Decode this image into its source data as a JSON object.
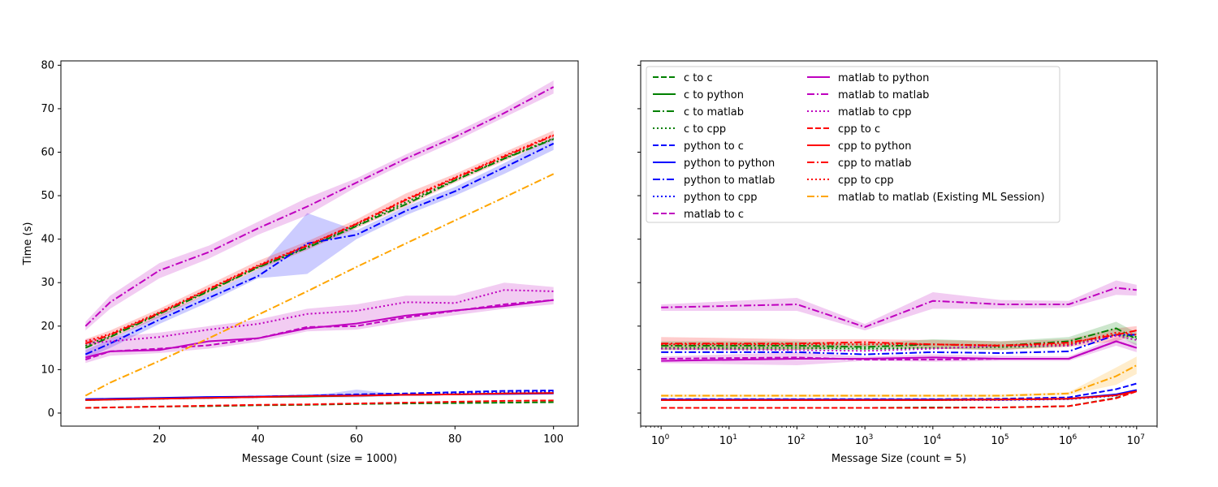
{
  "chart_data": [
    {
      "type": "line",
      "xlabel": "Message Count (size = 1000)",
      "ylabel": "Time (s)",
      "xlim": [
        0,
        105
      ],
      "ylim": [
        -3,
        81
      ],
      "xticks": [
        20,
        40,
        60,
        80,
        100
      ],
      "yticks": [
        0,
        10,
        20,
        30,
        40,
        50,
        60,
        70,
        80
      ],
      "x": [
        5,
        10,
        20,
        30,
        40,
        50,
        60,
        70,
        80,
        90,
        100
      ],
      "series": [
        {
          "name": "c to c",
          "color": "#008000",
          "style": "dashed",
          "values": [
            1.2,
            1.3,
            1.5,
            1.6,
            1.8,
            1.9,
            2.1,
            2.2,
            2.3,
            2.4,
            2.5
          ]
        },
        {
          "name": "c to python",
          "color": "#008000",
          "style": "solid",
          "values": [
            3.0,
            3.1,
            3.3,
            3.5,
            3.7,
            3.8,
            4.0,
            4.2,
            4.3,
            4.5,
            4.6
          ]
        },
        {
          "name": "c to matlab",
          "color": "#008000",
          "style": "dashdot",
          "values": [
            15.0,
            17.5,
            22.8,
            28.0,
            33.5,
            38.0,
            43.0,
            48.0,
            53.5,
            58.5,
            63.0
          ]
        },
        {
          "name": "c to cpp",
          "color": "#008000",
          "style": "dotted",
          "values": [
            15.5,
            17.8,
            23.0,
            28.2,
            33.6,
            38.2,
            43.2,
            48.5,
            53.6,
            58.6,
            63.2
          ]
        },
        {
          "name": "python to c",
          "color": "#0000ff",
          "style": "dashed",
          "values": [
            3.1,
            3.2,
            3.4,
            3.6,
            3.8,
            4.0,
            4.3,
            4.5,
            4.8,
            5.1,
            5.2
          ]
        },
        {
          "name": "python to python",
          "color": "#0000ff",
          "style": "solid",
          "values": [
            3.2,
            3.3,
            3.5,
            3.7,
            3.8,
            4.0,
            4.1,
            4.2,
            4.3,
            4.4,
            4.5
          ]
        },
        {
          "name": "python to matlab",
          "color": "#0000ff",
          "style": "dashdot",
          "values": [
            13.5,
            16.0,
            21.5,
            26.5,
            31.5,
            39.0,
            41.0,
            46.5,
            51.0,
            56.5,
            62.0
          ]
        },
        {
          "name": "python to cpp",
          "color": "#0000ff",
          "style": "dotted",
          "values": [
            3.0,
            3.1,
            3.3,
            3.5,
            3.7,
            3.9,
            4.1,
            4.3,
            4.5,
            4.7,
            4.9
          ]
        },
        {
          "name": "matlab to c",
          "color": "#bf00bf",
          "style": "dashed",
          "values": [
            12.3,
            14.2,
            14.8,
            15.6,
            17.2,
            19.8,
            20.0,
            22.0,
            23.5,
            25.0,
            26.0
          ]
        },
        {
          "name": "matlab to python",
          "color": "#bf00bf",
          "style": "solid",
          "values": [
            12.8,
            14.2,
            14.5,
            16.5,
            17.2,
            19.5,
            20.6,
            22.4,
            23.6,
            24.6,
            26.0
          ]
        },
        {
          "name": "matlab to matlab",
          "color": "#bf00bf",
          "style": "dashdot",
          "values": [
            20.0,
            25.5,
            32.8,
            37.0,
            42.5,
            47.5,
            53.0,
            58.5,
            63.5,
            69.0,
            75.0
          ]
        },
        {
          "name": "matlab to cpp",
          "color": "#bf00bf",
          "style": "dotted",
          "values": [
            16.0,
            16.5,
            17.5,
            19.2,
            20.5,
            22.8,
            23.5,
            25.5,
            25.3,
            28.3,
            28.0
          ]
        },
        {
          "name": "cpp to c",
          "color": "#ff0000",
          "style": "dashed",
          "values": [
            1.2,
            1.3,
            1.5,
            1.7,
            1.9,
            2.0,
            2.2,
            2.4,
            2.6,
            2.8,
            2.9
          ]
        },
        {
          "name": "cpp to python",
          "color": "#ff0000",
          "style": "solid",
          "values": [
            3.0,
            3.1,
            3.3,
            3.5,
            3.7,
            3.9,
            4.0,
            4.2,
            4.3,
            4.5,
            4.6
          ]
        },
        {
          "name": "cpp to matlab",
          "color": "#ff0000",
          "style": "dashdot",
          "values": [
            16.0,
            18.0,
            23.0,
            28.5,
            33.8,
            38.5,
            43.5,
            49.0,
            54.0,
            59.0,
            63.8
          ]
        },
        {
          "name": "cpp to cpp",
          "color": "#ff0000",
          "style": "dotted",
          "values": [
            16.5,
            18.2,
            23.2,
            28.6,
            34.0,
            38.6,
            43.6,
            49.2,
            54.2,
            59.2,
            64.0
          ]
        },
        {
          "name": "matlab to matlab (Existing ML Session)",
          "color": "#ffa500",
          "style": "dashdot",
          "values": [
            4.0,
            7.0,
            12.0,
            17.2,
            22.6,
            28.0,
            33.6,
            39.0,
            44.3,
            49.6,
            55.0
          ]
        }
      ],
      "bands": [
        {
          "color": "#0000ff",
          "x": [
            5,
            10,
            20,
            30,
            40,
            50,
            60,
            70,
            80,
            90,
            100
          ],
          "upper": [
            14.5,
            17.0,
            22.5,
            27.5,
            33.0,
            46.0,
            42.0,
            47.5,
            52.0,
            57.5,
            63.5
          ],
          "lower": [
            12.5,
            15.0,
            20.5,
            25.5,
            31.0,
            32.0,
            40.0,
            45.5,
            50.0,
            55.0,
            60.5
          ]
        },
        {
          "color": "#bf00bf",
          "x": [
            5,
            10,
            20,
            30,
            40,
            50,
            60,
            70,
            80,
            90,
            100
          ],
          "upper": [
            21.0,
            27.0,
            34.5,
            38.5,
            44.0,
            49.5,
            54.0,
            59.5,
            64.5,
            70.0,
            76.5
          ],
          "lower": [
            19.0,
            24.0,
            31.0,
            35.5,
            41.0,
            45.5,
            52.0,
            57.5,
            62.5,
            68.0,
            73.5
          ]
        },
        {
          "color": "#bf00bf",
          "x": [
            5,
            10,
            20,
            30,
            40,
            50,
            60,
            70,
            80,
            90,
            100
          ],
          "upper": [
            17.0,
            17.5,
            18.5,
            20.0,
            21.5,
            24.0,
            25.0,
            27.0,
            27.0,
            30.0,
            29.0
          ],
          "lower": [
            11.5,
            13.2,
            13.8,
            14.8,
            16.4,
            18.8,
            19.2,
            21.0,
            22.5,
            24.0,
            25.0
          ]
        },
        {
          "color": "#ff0000",
          "x": [
            5,
            10,
            20,
            30,
            40,
            50,
            60,
            70,
            80,
            90,
            100
          ],
          "upper": [
            17.0,
            19.0,
            24.0,
            29.5,
            35.0,
            39.5,
            44.5,
            50.5,
            55.0,
            60.0,
            65.0
          ],
          "lower": [
            15.0,
            17.0,
            22.0,
            27.5,
            33.0,
            37.5,
            42.5,
            47.5,
            53.0,
            58.0,
            62.8
          ]
        },
        {
          "color": "#0000ff",
          "x": [
            50,
            55,
            60,
            65,
            70
          ],
          "upper": [
            4.2,
            4.6,
            5.4,
            4.8,
            4.4
          ],
          "lower": [
            3.8,
            3.6,
            3.6,
            3.8,
            4.0
          ]
        }
      ]
    },
    {
      "type": "line",
      "xlabel": "Message Size (count = 5)",
      "xscale": "log",
      "xlim": [
        0.5,
        20000000
      ],
      "ylim": [
        -3,
        81
      ],
      "xticks": [
        1,
        10,
        100,
        1000,
        10000,
        100000,
        1000000,
        10000000
      ],
      "xtick_labels": [
        {
          "base": "10",
          "exp": "0"
        },
        {
          "base": "10",
          "exp": "1"
        },
        {
          "base": "10",
          "exp": "2"
        },
        {
          "base": "10",
          "exp": "3"
        },
        {
          "base": "10",
          "exp": "4"
        },
        {
          "base": "10",
          "exp": "5"
        },
        {
          "base": "10",
          "exp": "6"
        },
        {
          "base": "10",
          "exp": "7"
        }
      ],
      "legend_position": "top-left",
      "x": [
        1,
        100,
        1000,
        10000,
        100000,
        1000000,
        5000000,
        10000000
      ],
      "series": [
        {
          "name": "c to c",
          "color": "#008000",
          "style": "dashed",
          "values": [
            1.2,
            1.2,
            1.2,
            1.3,
            1.3,
            1.6,
            3.5,
            5.0
          ]
        },
        {
          "name": "c to python",
          "color": "#008000",
          "style": "solid",
          "values": [
            3.0,
            3.0,
            3.0,
            3.0,
            3.1,
            3.3,
            4.2,
            5.2
          ]
        },
        {
          "name": "c to matlab",
          "color": "#008000",
          "style": "dashdot",
          "values": [
            15.5,
            15.5,
            15.2,
            15.8,
            15.5,
            16.5,
            19.5,
            17.0
          ]
        },
        {
          "name": "c to cpp",
          "color": "#008000",
          "style": "dotted",
          "values": [
            15.0,
            15.0,
            14.8,
            15.0,
            15.2,
            15.5,
            18.0,
            17.5
          ]
        },
        {
          "name": "python to c",
          "color": "#0000ff",
          "style": "dashed",
          "values": [
            3.2,
            3.2,
            3.2,
            3.2,
            3.3,
            3.6,
            5.5,
            6.8
          ]
        },
        {
          "name": "python to python",
          "color": "#0000ff",
          "style": "solid",
          "values": [
            3.1,
            3.1,
            3.1,
            3.1,
            3.1,
            3.3,
            4.3,
            5.3
          ]
        },
        {
          "name": "python to matlab",
          "color": "#0000ff",
          "style": "dashdot",
          "values": [
            14.0,
            14.0,
            13.5,
            14.0,
            13.8,
            14.2,
            18.0,
            18.0
          ]
        },
        {
          "name": "python to cpp",
          "color": "#0000ff",
          "style": "dotted",
          "values": [
            3.0,
            3.0,
            3.0,
            3.0,
            3.0,
            3.2,
            4.0,
            5.1
          ]
        },
        {
          "name": "matlab to c",
          "color": "#bf00bf",
          "style": "dashed",
          "values": [
            12.5,
            12.8,
            12.3,
            12.3,
            12.5,
            12.5,
            16.5,
            15.0
          ]
        },
        {
          "name": "matlab to python",
          "color": "#bf00bf",
          "style": "solid",
          "values": [
            12.0,
            12.5,
            12.5,
            12.8,
            12.5,
            12.5,
            16.5,
            15.0
          ]
        },
        {
          "name": "matlab to matlab",
          "color": "#bf00bf",
          "style": "dashdot",
          "values": [
            24.3,
            25.0,
            19.8,
            25.8,
            25.0,
            25.0,
            28.8,
            28.3
          ]
        },
        {
          "name": "matlab to cpp",
          "color": "#bf00bf",
          "style": "dotted",
          "values": [
            14.8,
            14.5,
            14.3,
            14.8,
            15.5,
            15.5,
            17.8,
            16.8
          ]
        },
        {
          "name": "cpp to c",
          "color": "#ff0000",
          "style": "dashed",
          "values": [
            1.2,
            1.2,
            1.2,
            1.2,
            1.3,
            1.6,
            3.4,
            5.0
          ]
        },
        {
          "name": "cpp to python",
          "color": "#ff0000",
          "style": "solid",
          "values": [
            3.0,
            3.0,
            3.0,
            3.0,
            3.1,
            3.3,
            4.1,
            5.0
          ]
        },
        {
          "name": "cpp to matlab",
          "color": "#ff0000",
          "style": "dashdot",
          "values": [
            16.0,
            16.0,
            16.3,
            15.8,
            15.5,
            16.2,
            18.0,
            19.0
          ]
        },
        {
          "name": "cpp to cpp",
          "color": "#ff0000",
          "style": "dotted",
          "values": [
            15.8,
            15.8,
            15.8,
            15.8,
            15.6,
            15.8,
            18.5,
            18.0
          ]
        },
        {
          "name": "matlab to matlab (Existing ML Session)",
          "color": "#ffa500",
          "style": "dashdot",
          "values": [
            4.0,
            4.0,
            4.0,
            4.0,
            4.0,
            4.5,
            8.5,
            11.0
          ]
        }
      ],
      "bands": [
        {
          "color": "#bf00bf",
          "x": [
            1,
            100,
            1000,
            10000,
            100000,
            1000000,
            5000000,
            10000000
          ],
          "upper": [
            25.0,
            26.5,
            20.5,
            27.8,
            26.0,
            25.8,
            30.5,
            29.5
          ],
          "lower": [
            23.5,
            23.5,
            19.0,
            24.0,
            24.0,
            24.2,
            27.2,
            27.0
          ]
        },
        {
          "color": "#ff0000",
          "x": [
            1,
            100,
            1000,
            10000,
            100000,
            1000000,
            5000000,
            10000000
          ],
          "upper": [
            17.5,
            17.0,
            17.0,
            16.8,
            16.5,
            17.0,
            19.5,
            20.0
          ],
          "lower": [
            14.5,
            14.5,
            15.3,
            14.8,
            14.5,
            15.2,
            16.5,
            18.0
          ]
        },
        {
          "color": "#008000",
          "x": [
            1,
            100,
            1000,
            10000,
            100000,
            1000000,
            5000000,
            10000000
          ],
          "upper": [
            16.5,
            16.5,
            16.0,
            17.0,
            16.5,
            17.5,
            21.0,
            18.5
          ],
          "lower": [
            14.5,
            14.5,
            14.5,
            14.8,
            14.5,
            15.5,
            18.0,
            15.5
          ]
        },
        {
          "color": "#bf00bf",
          "x": [
            1,
            100,
            1000,
            10000,
            100000,
            1000000,
            5000000,
            10000000
          ],
          "upper": [
            13.0,
            14.0,
            13.0,
            13.5,
            13.2,
            13.0,
            17.5,
            16.0
          ],
          "lower": [
            11.5,
            11.0,
            12.0,
            11.8,
            12.0,
            12.0,
            15.5,
            14.0
          ]
        },
        {
          "color": "#ffa500",
          "x": [
            1,
            100,
            1000,
            10000,
            100000,
            1000000,
            5000000,
            10000000
          ],
          "upper": [
            4.3,
            4.3,
            4.3,
            4.3,
            4.3,
            4.8,
            10.5,
            13.0
          ],
          "lower": [
            3.7,
            3.7,
            3.7,
            3.7,
            3.7,
            4.2,
            6.5,
            9.0
          ]
        }
      ]
    }
  ]
}
